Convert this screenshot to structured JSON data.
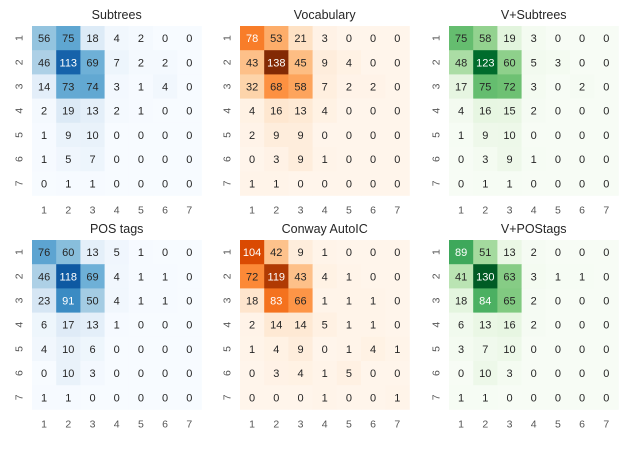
{
  "chart_data": [
    {
      "type": "heatmap",
      "title": "Subtrees",
      "colormap": "blue",
      "x_ticks": [
        "1",
        "2",
        "3",
        "4",
        "5",
        "6",
        "7"
      ],
      "y_ticks": [
        "1",
        "2",
        "3",
        "4",
        "5",
        "6",
        "7"
      ],
      "values": [
        [
          56,
          75,
          18,
          4,
          2,
          0,
          0
        ],
        [
          46,
          113,
          69,
          7,
          2,
          2,
          0
        ],
        [
          14,
          73,
          74,
          3,
          1,
          4,
          0
        ],
        [
          2,
          19,
          13,
          2,
          1,
          0,
          0
        ],
        [
          1,
          9,
          10,
          0,
          0,
          0,
          0
        ],
        [
          1,
          5,
          7,
          0,
          0,
          0,
          0
        ],
        [
          0,
          1,
          1,
          0,
          0,
          0,
          0
        ]
      ]
    },
    {
      "type": "heatmap",
      "title": "Vocabulary",
      "colormap": "orange",
      "x_ticks": [
        "1",
        "2",
        "3",
        "4",
        "5",
        "6",
        "7"
      ],
      "y_ticks": [
        "1",
        "2",
        "3",
        "4",
        "5",
        "6",
        "7"
      ],
      "values": [
        [
          78,
          53,
          21,
          3,
          0,
          0,
          0
        ],
        [
          43,
          138,
          45,
          9,
          4,
          0,
          0
        ],
        [
          32,
          68,
          58,
          7,
          2,
          2,
          0
        ],
        [
          4,
          16,
          13,
          4,
          0,
          0,
          0
        ],
        [
          2,
          9,
          9,
          0,
          0,
          0,
          0
        ],
        [
          0,
          3,
          9,
          1,
          0,
          0,
          0
        ],
        [
          1,
          1,
          0,
          0,
          0,
          0,
          0
        ]
      ]
    },
    {
      "type": "heatmap",
      "title": "V+Subtrees",
      "colormap": "green",
      "x_ticks": [
        "1",
        "2",
        "3",
        "4",
        "5",
        "6",
        "7"
      ],
      "y_ticks": [
        "1",
        "2",
        "3",
        "4",
        "5",
        "6",
        "7"
      ],
      "values": [
        [
          75,
          58,
          19,
          3,
          0,
          0,
          0
        ],
        [
          48,
          123,
          60,
          5,
          3,
          0,
          0
        ],
        [
          17,
          75,
          72,
          3,
          0,
          2,
          0
        ],
        [
          4,
          16,
          15,
          2,
          0,
          0,
          0
        ],
        [
          1,
          9,
          10,
          0,
          0,
          0,
          0
        ],
        [
          0,
          3,
          9,
          1,
          0,
          0,
          0
        ],
        [
          0,
          1,
          1,
          0,
          0,
          0,
          0
        ]
      ]
    },
    {
      "type": "heatmap",
      "title": "POS tags",
      "colormap": "blue",
      "x_ticks": [
        "1",
        "2",
        "3",
        "4",
        "5",
        "6",
        "7"
      ],
      "y_ticks": [
        "1",
        "2",
        "3",
        "4",
        "5",
        "6",
        "7"
      ],
      "values": [
        [
          76,
          60,
          13,
          5,
          1,
          0,
          0
        ],
        [
          46,
          118,
          69,
          4,
          1,
          1,
          0
        ],
        [
          23,
          91,
          50,
          4,
          1,
          1,
          0
        ],
        [
          6,
          17,
          13,
          1,
          0,
          0,
          0
        ],
        [
          4,
          10,
          6,
          0,
          0,
          0,
          0
        ],
        [
          0,
          10,
          3,
          0,
          0,
          0,
          0
        ],
        [
          1,
          1,
          0,
          0,
          0,
          0,
          0
        ]
      ]
    },
    {
      "type": "heatmap",
      "title": "Conway AutoIC",
      "colormap": "orange",
      "x_ticks": [
        "1",
        "2",
        "3",
        "4",
        "5",
        "6",
        "7"
      ],
      "y_ticks": [
        "1",
        "2",
        "3",
        "4",
        "5",
        "6",
        "7"
      ],
      "values": [
        [
          104,
          42,
          9,
          1,
          0,
          0,
          0
        ],
        [
          72,
          119,
          43,
          4,
          1,
          0,
          0
        ],
        [
          18,
          83,
          66,
          1,
          1,
          1,
          0
        ],
        [
          2,
          14,
          14,
          5,
          1,
          1,
          0
        ],
        [
          1,
          4,
          9,
          0,
          1,
          4,
          1
        ],
        [
          0,
          3,
          4,
          1,
          5,
          0,
          0
        ],
        [
          0,
          0,
          0,
          1,
          0,
          0,
          1
        ]
      ]
    },
    {
      "type": "heatmap",
      "title": "V+POStags",
      "colormap": "green",
      "x_ticks": [
        "1",
        "2",
        "3",
        "4",
        "5",
        "6",
        "7"
      ],
      "y_ticks": [
        "1",
        "2",
        "3",
        "4",
        "5",
        "6",
        "7"
      ],
      "values": [
        [
          89,
          51,
          13,
          2,
          0,
          0,
          0
        ],
        [
          41,
          130,
          63,
          3,
          1,
          1,
          0
        ],
        [
          18,
          84,
          65,
          2,
          0,
          0,
          0
        ],
        [
          6,
          13,
          16,
          2,
          0,
          0,
          0
        ],
        [
          3,
          7,
          10,
          0,
          0,
          0,
          0
        ],
        [
          0,
          10,
          3,
          0,
          0,
          0,
          0
        ],
        [
          1,
          1,
          0,
          0,
          0,
          0,
          0
        ]
      ]
    }
  ],
  "colors": {
    "blue": [
      "#f7fbff",
      "#deebf7",
      "#c6dbef",
      "#9ecae1",
      "#6baed6",
      "#4292c6",
      "#2171b5",
      "#08519c",
      "#08306b"
    ],
    "orange": [
      "#fff5eb",
      "#fee6ce",
      "#fdd0a2",
      "#fdae6b",
      "#fd8d3c",
      "#f16913",
      "#d94801",
      "#a63603",
      "#7f2704"
    ],
    "green": [
      "#f7fcf5",
      "#e5f5e0",
      "#c7e9c0",
      "#a1d99b",
      "#74c476",
      "#41ab5d",
      "#238b45",
      "#006d2c",
      "#00441b"
    ],
    "text_dark": "#262626",
    "text_light": "#ffffff",
    "tick_text": "#555555"
  },
  "color_scale_max": 140
}
